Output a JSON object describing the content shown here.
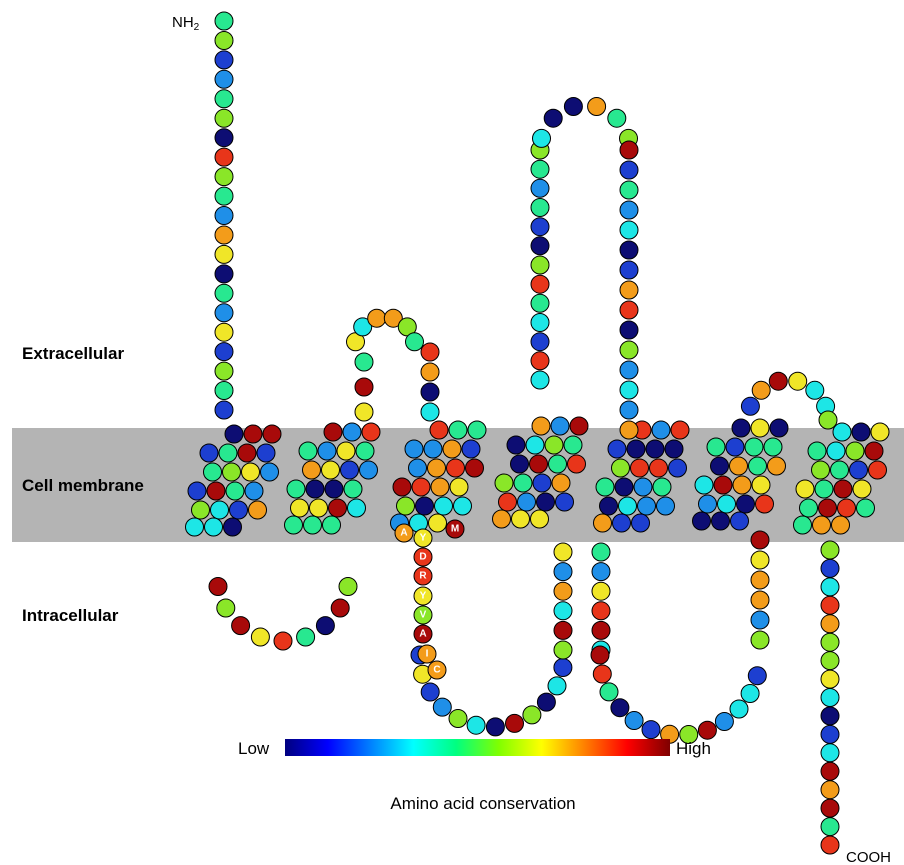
{
  "regions": {
    "extracellular": "Extracellular",
    "membrane": "Cell membrane",
    "intracellular": "Intracellular"
  },
  "termini": {
    "n_term": "NH",
    "n_term_sub": "2",
    "c_term": "COOH"
  },
  "motif": [
    "A",
    "Y",
    "D",
    "R",
    "Y",
    "V",
    "A",
    "I",
    "C",
    "M"
  ],
  "legend": {
    "title": "Amino acid conservation",
    "low": "Low",
    "high": "High",
    "gradient": [
      "#00007f",
      "#0000ff",
      "#0080ff",
      "#00ffff",
      "#00ff80",
      "#80ff00",
      "#ffff00",
      "#ff8000",
      "#ff0000",
      "#7f0000"
    ]
  },
  "colors": {
    "membrane": "#b4b4b4",
    "conservation_scale": [
      "#0d0d73",
      "#1d3fd0",
      "#1f8fe8",
      "#1de6e6",
      "#28e890",
      "#8ae628",
      "#f0e628",
      "#f39c1a",
      "#e8351a",
      "#a80a0a"
    ]
  }
}
